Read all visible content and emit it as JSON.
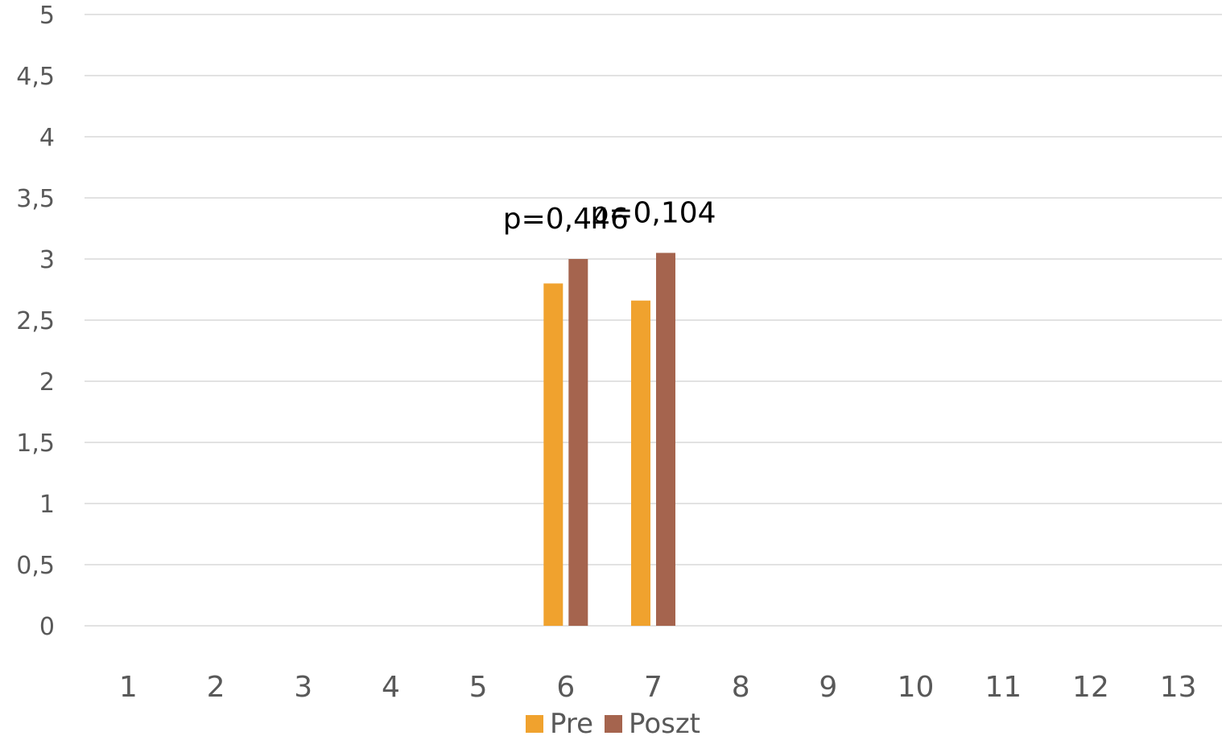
{
  "chart_data": {
    "type": "bar",
    "categories": [
      "1",
      "2",
      "3",
      "4",
      "5",
      "6",
      "7",
      "8",
      "9",
      "10",
      "11",
      "12",
      "13"
    ],
    "series": [
      {
        "name": "Pre",
        "color": "#F0A22E",
        "values": [
          null,
          null,
          null,
          null,
          null,
          2.8,
          2.66,
          null,
          null,
          null,
          null,
          null,
          null
        ]
      },
      {
        "name": "Poszt",
        "color": "#A5644E",
        "values": [
          null,
          null,
          null,
          null,
          null,
          3.0,
          3.05,
          null,
          null,
          null,
          null,
          null,
          null
        ]
      }
    ],
    "ylim": [
      0,
      5
    ],
    "yticks": [
      0,
      0.5,
      1,
      1.5,
      2,
      2.5,
      3,
      3.5,
      4,
      4.5,
      5
    ],
    "ytick_labels": [
      "0",
      "0,5",
      "1",
      "1,5",
      "2",
      "2,5",
      "3",
      "3,5",
      "4",
      "4,5",
      "5"
    ],
    "annotations": [
      {
        "category": "6",
        "text": "p=0,446"
      },
      {
        "category": "7",
        "text": "p=0,104"
      }
    ],
    "grid": true,
    "legend_position": "bottom",
    "gridline_color": "#D9D9D9"
  }
}
